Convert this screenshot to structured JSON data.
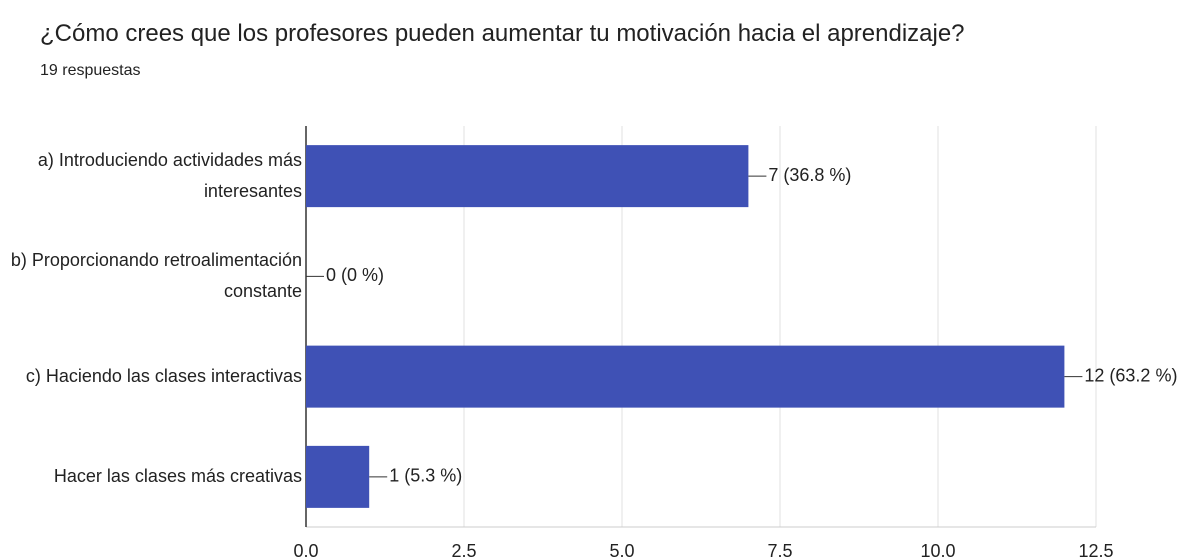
{
  "chart_data": {
    "type": "hbar",
    "title": "¿Cómo crees que los profesores pueden aumentar tu motivación hacia el aprendizaje?",
    "subtitle": "19 respuestas",
    "categories": [
      "a) Introduciendo actividades más interesantes",
      "b) Proporcionando retroalimentación constante",
      "c) Haciendo las clases interactivas",
      "Hacer las clases más creativas"
    ],
    "values": [
      7,
      0,
      12,
      1
    ],
    "value_labels": [
      "7 (36.8 %)",
      "0 (0 %)",
      "12 (63.2 %)",
      "1 (5.3 %)"
    ],
    "color": "#3f51b5",
    "xlim": [
      0,
      12.5
    ],
    "xticks": [
      {
        "value": 0,
        "label": "0.0"
      },
      2.5,
      {
        "value": 5,
        "label": "5.0"
      },
      7.5,
      {
        "value": 10,
        "label": "10.0"
      },
      12.5
    ],
    "grid": true
  }
}
